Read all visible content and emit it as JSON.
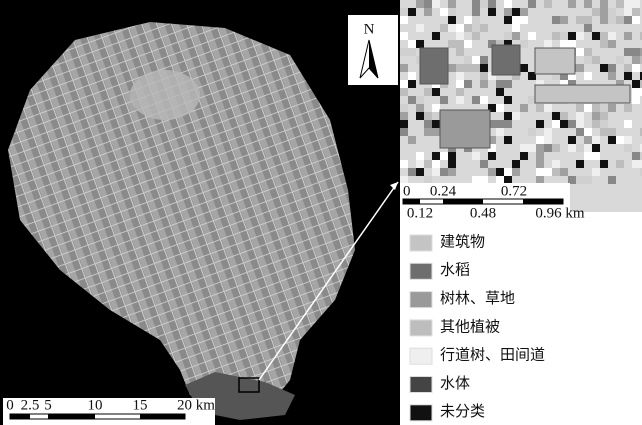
{
  "main_map": {
    "north_label": "N",
    "scale_labels": [
      "0",
      "2.5",
      "5",
      "10",
      "15",
      "20 km"
    ]
  },
  "inset": {
    "scale_top_labels": [
      "0",
      "0.24",
      "0.72"
    ],
    "scale_bottom_labels": [
      "0.12",
      "0.48",
      "0.96 km"
    ]
  },
  "legend": [
    {
      "label": "建筑物",
      "color": "#c4c4c4"
    },
    {
      "label": "水稻",
      "color": "#6e6e6e"
    },
    {
      "label": "树林、草地",
      "color": "#9a9a9a"
    },
    {
      "label": "其他植被",
      "color": "#bdbdbd"
    },
    {
      "label": "行道树、田间道",
      "color": "#efefef"
    },
    {
      "label": "水体",
      "color": "#444444"
    },
    {
      "label": "未分类",
      "color": "#111111"
    }
  ]
}
